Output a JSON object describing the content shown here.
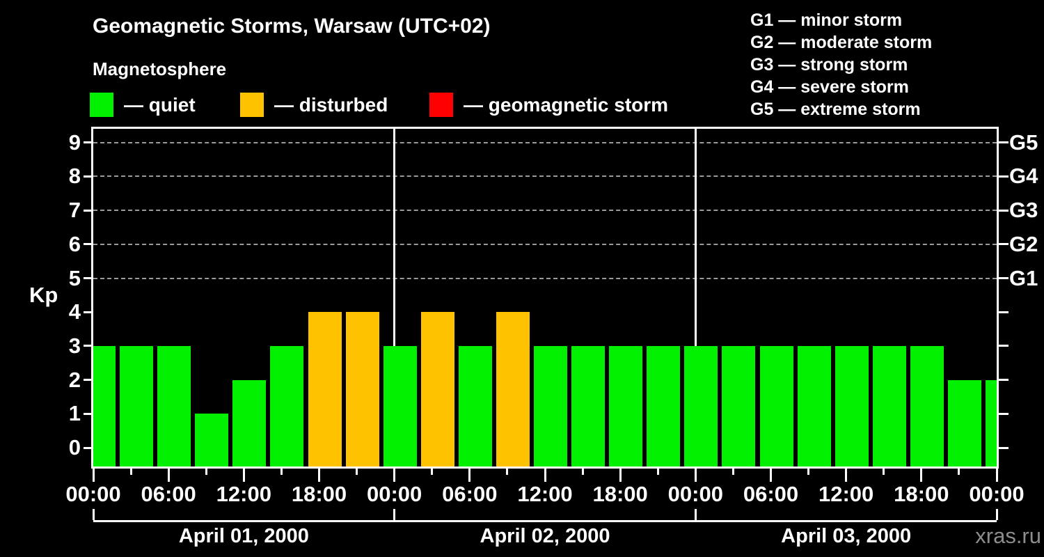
{
  "header": {
    "subtitle": "Magnetosphere"
  },
  "legend": {
    "items": [
      {
        "key": "quiet",
        "label": "— quiet",
        "color": "#00f000"
      },
      {
        "key": "disturbed",
        "label": "— disturbed",
        "color": "#ffc200"
      },
      {
        "key": "storm",
        "label": "— geomagnetic storm",
        "color": "#ff0000"
      }
    ]
  },
  "g_scale_legend": {
    "lines": [
      "G1 — minor storm",
      "G2 — moderate storm",
      "G3 — strong storm",
      "G4 — severe storm",
      "G5 — extreme storm"
    ]
  },
  "watermark": "xras.ru",
  "chart_data": {
    "type": "bar",
    "title": "Geomagnetic Storms, Warsaw (UTC+02)",
    "subtitle": "Magnetosphere",
    "ylabel": "Kp",
    "ylim": [
      0,
      9.6
    ],
    "y_ticks": [
      0,
      1,
      2,
      3,
      4,
      5,
      6,
      7,
      8,
      9
    ],
    "gridlines_at_kp": [
      5,
      6,
      7,
      8,
      9
    ],
    "right_axis": {
      "labels": [
        "G1",
        "G2",
        "G3",
        "G4",
        "G5"
      ],
      "at_kp": [
        5,
        6,
        7,
        8,
        9
      ]
    },
    "bar_interval_hours": 3,
    "bars_per_day": 8,
    "x_labels_per_day": [
      "00:00",
      "06:00",
      "12:00",
      "18:00"
    ],
    "x_final_label": "00:00",
    "days": [
      {
        "date": "April 01, 2000",
        "kp": [
          3,
          3,
          3,
          1,
          2,
          3,
          4,
          4
        ]
      },
      {
        "date": "April 02, 2000",
        "kp": [
          3,
          4,
          3,
          4,
          3,
          3,
          3,
          3
        ]
      },
      {
        "date": "April 03, 2000",
        "kp": [
          3,
          3,
          3,
          3,
          3,
          3,
          3,
          2
        ]
      }
    ],
    "partial_next_day_bar_kp": 2,
    "color_rules": {
      "quiet_kp_max": 3,
      "disturbed_kp": 4,
      "storm_kp_min": 5
    },
    "colors": {
      "quiet": "#00f000",
      "disturbed": "#ffc200",
      "storm": "#ff0000"
    },
    "legend_position": "top-left",
    "grid": "dashed horizontal at Kp 5-9 only"
  }
}
